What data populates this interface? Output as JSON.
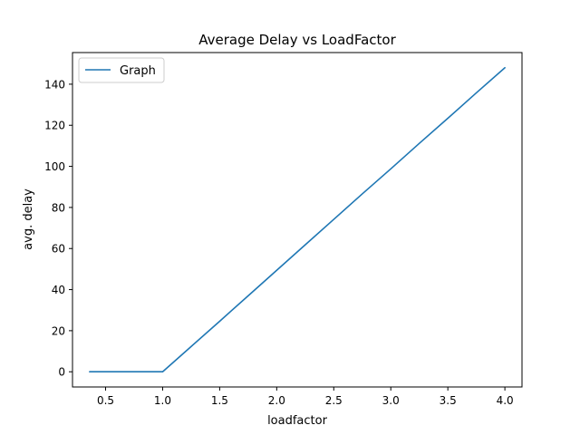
{
  "chart_data": {
    "type": "line",
    "title": "Average Delay vs LoadFactor",
    "xlabel": "loadfactor",
    "ylabel": "avg. delay",
    "xlim": [
      0.21,
      4.15
    ],
    "ylim": [
      -7.4,
      155.4
    ],
    "xticks": [
      0.5,
      1.0,
      1.5,
      2.0,
      2.5,
      3.0,
      3.5,
      4.0
    ],
    "xtick_labels": [
      "0.5",
      "1.0",
      "1.5",
      "2.0",
      "2.5",
      "3.0",
      "3.5",
      "4.0"
    ],
    "yticks": [
      0,
      20,
      40,
      60,
      80,
      100,
      120,
      140
    ],
    "ytick_labels": [
      "0",
      "20",
      "40",
      "60",
      "80",
      "100",
      "120",
      "140"
    ],
    "grid": false,
    "legend_position": "top-left",
    "series": [
      {
        "name": "Graph",
        "color": "#1f77b4",
        "x": [
          0.36,
          0.5,
          0.75,
          1.0,
          1.25,
          1.5,
          1.75,
          2.0,
          2.25,
          2.5,
          2.75,
          3.0,
          3.25,
          3.5,
          3.75,
          4.0
        ],
        "y": [
          0.0,
          0.0,
          0.0,
          0.0,
          12.3,
          24.6,
          37.0,
          49.4,
          61.8,
          74.2,
          86.6,
          98.8,
          111.2,
          123.4,
          135.8,
          148.0
        ]
      }
    ]
  }
}
